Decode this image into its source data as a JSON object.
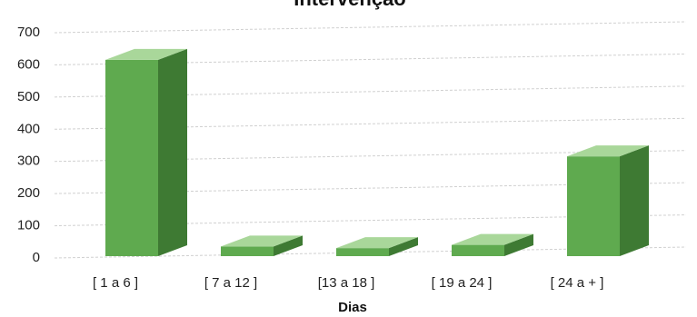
{
  "chart_data": {
    "type": "bar",
    "title": "Intervenção",
    "xlabel": "Dias",
    "ylabel": "",
    "ylim": [
      0,
      700
    ],
    "yticks": [
      "0",
      "100",
      "200",
      "300",
      "400",
      "500",
      "600",
      "700"
    ],
    "categories": [
      "[ 1 a 6 ]",
      "[ 7 a 12 ]",
      "[13 a 18 ]",
      "[ 19 a 24 ]",
      "[ 24 a + ]"
    ],
    "values": [
      610,
      30,
      25,
      35,
      310
    ],
    "grid": true,
    "legend": "none",
    "colors": {
      "front": "#5faa4f",
      "side": "#3e7a33",
      "top": "#a9d79a",
      "grid": "#d0d0d0"
    }
  }
}
